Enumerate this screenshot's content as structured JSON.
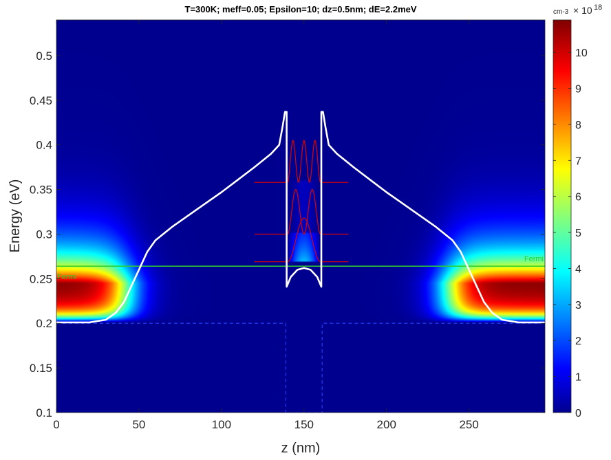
{
  "chart_data": {
    "type": "heatmap",
    "title": "T=300K; meff=0.05; Epsilon=10; dz=0.5nm; dE=2.2meV",
    "xlabel": "z (nm)",
    "ylabel": "Energy (eV)",
    "xlim": [
      0,
      296
    ],
    "ylim": [
      0.1,
      0.54
    ],
    "xticks": [
      "0",
      "50",
      "100",
      "150",
      "200",
      "250"
    ],
    "xtick_values": [
      0,
      50,
      100,
      150,
      200,
      250
    ],
    "yticks": [
      "0.1",
      "0.15",
      "0.2",
      "0.25",
      "0.3",
      "0.35",
      "0.4",
      "0.45",
      "0.5"
    ],
    "ytick_values": [
      0.1,
      0.15,
      0.2,
      0.25,
      0.3,
      0.35,
      0.4,
      0.45,
      0.5
    ],
    "colorbar": {
      "unit": "cm-3",
      "exponent_base": "× 10",
      "exponent": "18",
      "range": [
        0,
        10.9
      ],
      "ticks": [
        "0",
        "1",
        "2",
        "3",
        "4",
        "5",
        "6",
        "7",
        "8",
        "9",
        "10"
      ],
      "tick_values": [
        0,
        1,
        2,
        3,
        4,
        5,
        6,
        7,
        8,
        9,
        10
      ],
      "colormap": "jet"
    },
    "fermi": {
      "label": "Fermi",
      "energy": 0.264,
      "color": "#2bd12b"
    },
    "conduction_band": {
      "color": "#ffffff",
      "points": [
        [
          0,
          0.201
        ],
        [
          20,
          0.201
        ],
        [
          30,
          0.204
        ],
        [
          36,
          0.212
        ],
        [
          41,
          0.224
        ],
        [
          46,
          0.244
        ],
        [
          50,
          0.26
        ],
        [
          55,
          0.28
        ],
        [
          60,
          0.293
        ],
        [
          70,
          0.308
        ],
        [
          80,
          0.321
        ],
        [
          90,
          0.334
        ],
        [
          100,
          0.347
        ],
        [
          110,
          0.361
        ],
        [
          120,
          0.375
        ],
        [
          130,
          0.39
        ],
        [
          135,
          0.4
        ],
        [
          137,
          0.42
        ],
        [
          138.5,
          0.437
        ],
        [
          139.5,
          0.437
        ],
        [
          139.5,
          0.241
        ],
        [
          142,
          0.252
        ],
        [
          146,
          0.26
        ],
        [
          150,
          0.262
        ],
        [
          154,
          0.26
        ],
        [
          158,
          0.252
        ],
        [
          160.5,
          0.241
        ],
        [
          160.5,
          0.437
        ],
        [
          161.5,
          0.437
        ],
        [
          163,
          0.42
        ],
        [
          165,
          0.4
        ],
        [
          170,
          0.39
        ],
        [
          180,
          0.375
        ],
        [
          190,
          0.361
        ],
        [
          200,
          0.347
        ],
        [
          210,
          0.334
        ],
        [
          220,
          0.321
        ],
        [
          230,
          0.308
        ],
        [
          240,
          0.293
        ],
        [
          245,
          0.28
        ],
        [
          250,
          0.26
        ],
        [
          254,
          0.244
        ],
        [
          259,
          0.224
        ],
        [
          264,
          0.212
        ],
        [
          270,
          0.204
        ],
        [
          280,
          0.201
        ],
        [
          296,
          0.201
        ]
      ]
    },
    "barrier_reference": {
      "color": "#1f36e8",
      "points": [
        [
          0,
          0.2
        ],
        [
          139,
          0.2
        ],
        [
          139,
          0.1
        ],
        [
          161,
          0.1
        ],
        [
          161,
          0.2
        ],
        [
          296,
          0.2
        ]
      ]
    },
    "wavefunctions": {
      "color": "#e00000",
      "x_range": [
        120,
        177
      ],
      "well": [
        140,
        160
      ],
      "states": [
        {
          "energy": 0.269,
          "amplitude": 0.049,
          "nodes": 1
        },
        {
          "energy": 0.3,
          "amplitude": 0.05,
          "nodes": 2
        },
        {
          "energy": 0.358,
          "amplitude": 0.047,
          "nodes": 3
        }
      ]
    },
    "density": {
      "lead_peak_energy": 0.245,
      "lead_peak_value": 10.9,
      "lead_decay_energy": 0.4,
      "left_lead_edge": 52,
      "right_lead_edge": 248,
      "well_bands": [
        [
          0.27,
          0.302
        ],
        [
          0.302,
          0.36
        ]
      ]
    }
  }
}
